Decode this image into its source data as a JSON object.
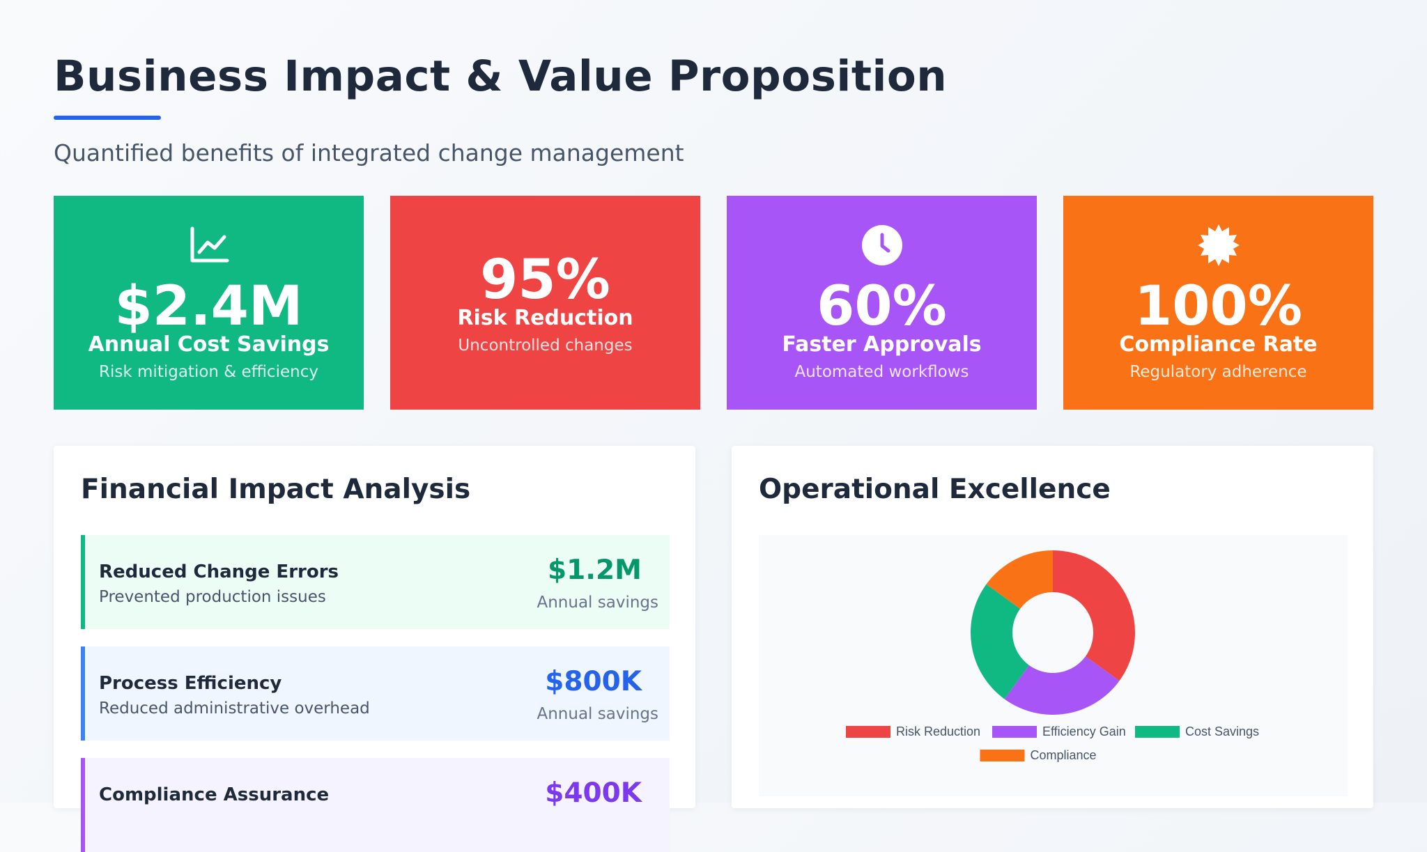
{
  "header": {
    "title": "Business Impact & Value Proposition",
    "subtitle": "Quantified benefits of integrated change management"
  },
  "kpis": [
    {
      "value": "$2.4M",
      "label": "Annual Cost Savings",
      "desc": "Risk mitigation & efficiency",
      "color": "#10b981",
      "icon": "chart-line-icon"
    },
    {
      "value": "95%",
      "label": "Risk Reduction",
      "desc": "Uncontrolled changes",
      "color": "#ef4444",
      "icon": ""
    },
    {
      "value": "60%",
      "label": "Faster Approvals",
      "desc": "Automated workflows",
      "color": "#a855f7",
      "icon": "clock-icon"
    },
    {
      "value": "100%",
      "label": "Compliance Rate",
      "desc": "Regulatory adherence",
      "color": "#f97316",
      "icon": "certificate-badge-icon"
    }
  ],
  "financial": {
    "title": "Financial Impact Analysis",
    "items": [
      {
        "title": "Reduced Change Errors",
        "desc": "Prevented production issues",
        "value": "$1.2M",
        "note": "Annual savings",
        "accent": "#10b981",
        "bg": "#ecfdf5",
        "value_color": "#059669"
      },
      {
        "title": "Process Efficiency",
        "desc": "Reduced administrative overhead",
        "value": "$800K",
        "note": "Annual savings",
        "accent": "#3b82f6",
        "bg": "#eff6ff",
        "value_color": "#2563eb"
      },
      {
        "title": "Compliance Assurance",
        "desc": "",
        "value": "$400K",
        "note": "",
        "accent": "#a855f7",
        "bg": "#f5f3ff",
        "value_color": "#7c3aed"
      }
    ]
  },
  "operational": {
    "title": "Operational Excellence"
  },
  "chart_data": {
    "type": "pie",
    "categories": [
      "Risk Reduction",
      "Efficiency Gain",
      "Cost Savings",
      "Compliance"
    ],
    "values": [
      35,
      25,
      25,
      15
    ],
    "colors": [
      "#ef4444",
      "#a855f7",
      "#10b981",
      "#f97316"
    ],
    "title": "",
    "legend_position": "bottom",
    "donut": true
  }
}
